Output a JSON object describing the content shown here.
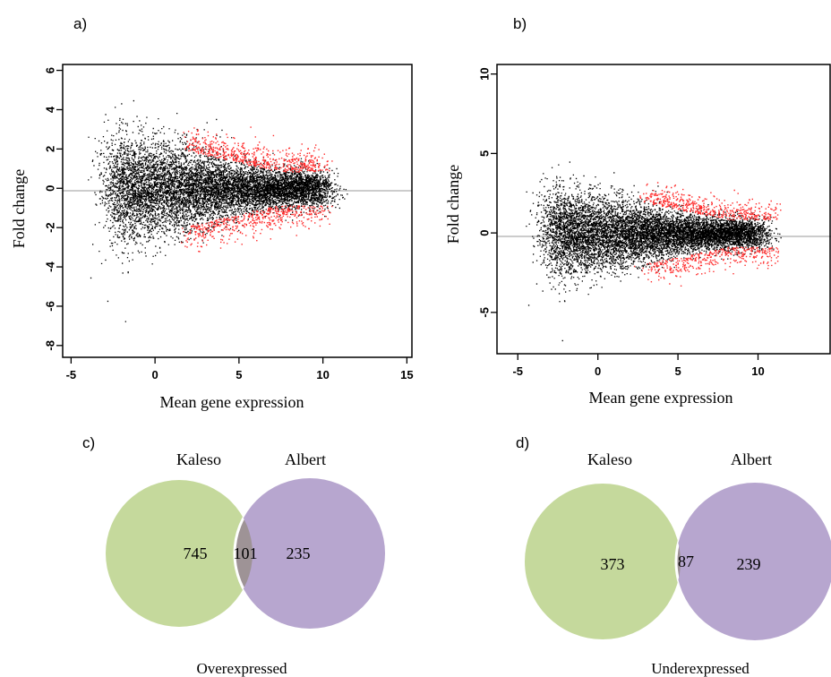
{
  "chart_data": [
    {
      "panel": "a)",
      "type": "scatter",
      "xlabel": "Mean gene expression",
      "ylabel": "Fold change",
      "xlim": [
        -5.5,
        15.3
      ],
      "ylim": [
        -8.6,
        6.3
      ],
      "xticks": [
        -5,
        0,
        5,
        10,
        15
      ],
      "yticks": [
        -8,
        -6,
        -4,
        -2,
        0,
        2,
        4,
        6
      ],
      "reference_line_y": 0,
      "colors": {
        "non_significant": "#000000",
        "significant": "#ff2a2a",
        "reference_line": "#bbbbbb"
      },
      "series": [
        {
          "color_key": "non_significant",
          "x_range": [
            -2.5,
            10
          ],
          "y_spread": 5.5
        },
        {
          "color_key": "significant",
          "x_range": [
            2,
            10
          ],
          "y_spread": 2.5
        }
      ]
    },
    {
      "panel": "b)",
      "type": "scatter",
      "xlabel": "Mean gene expression",
      "ylabel": "Fold change",
      "xlim": [
        -6.3,
        14.5
      ],
      "ylim": [
        -7.6,
        10.6
      ],
      "xticks": [
        -5,
        0,
        5,
        10
      ],
      "yticks": [
        -5,
        0,
        5,
        10
      ],
      "reference_line_y": 0,
      "colors": {
        "non_significant": "#000000",
        "significant": "#ff2a2a",
        "reference_line": "#bbbbbb"
      },
      "series": [
        {
          "color_key": "non_significant",
          "x_range": [
            -3,
            10
          ],
          "y_spread": 5.5
        },
        {
          "color_key": "significant",
          "x_range": [
            3,
            11
          ],
          "y_spread": 2.5
        }
      ]
    },
    {
      "panel": "c)",
      "type": "venn",
      "caption": "Overexpressed",
      "sets": [
        {
          "label": "Kaleso",
          "only": 745,
          "color": "#c5d99c"
        },
        {
          "label": "Albert",
          "only": 235,
          "color": "#b7a6cf"
        }
      ],
      "intersection": 101,
      "intersection_color": "#9e9396"
    },
    {
      "panel": "d)",
      "type": "venn",
      "caption": "Underexpressed",
      "sets": [
        {
          "label": "Kaleso",
          "only": 373,
          "color": "#c5d99c"
        },
        {
          "label": "Albert",
          "only": 239,
          "color": "#b7a6cf"
        }
      ],
      "intersection": 87,
      "intersection_color": "#9e9396"
    }
  ]
}
